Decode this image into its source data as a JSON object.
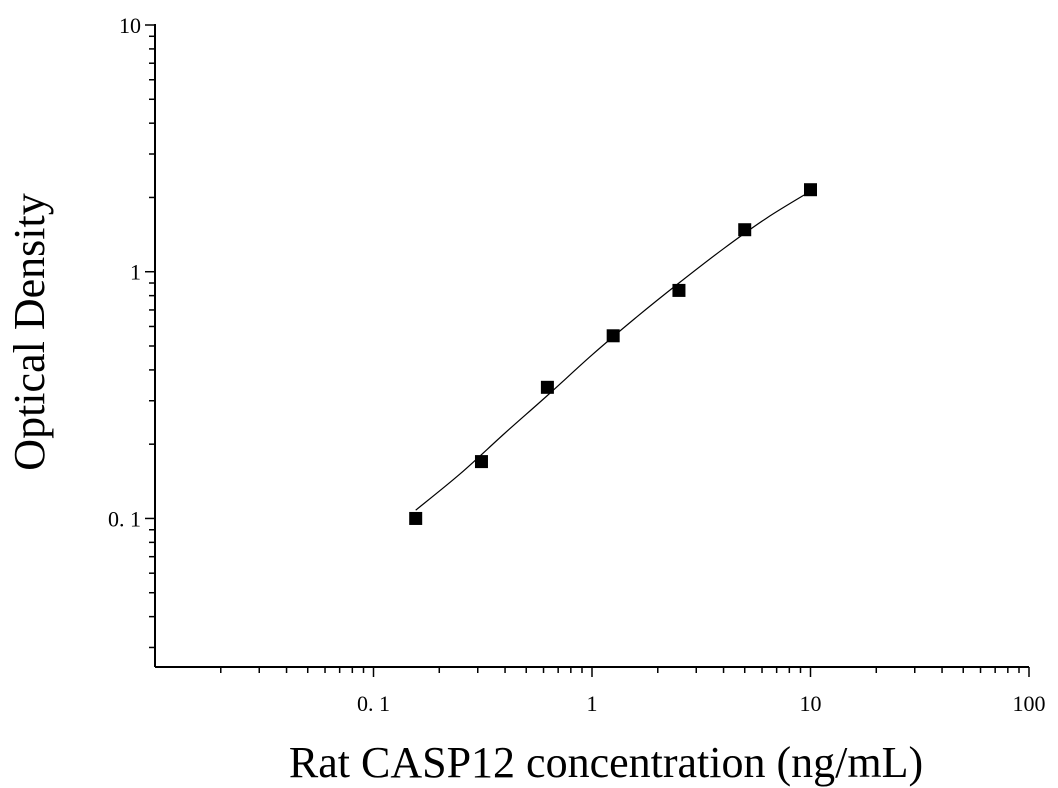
{
  "chart_data": {
    "type": "scatter",
    "xlabel": "Rat CASP12 concentration (ng/mL)",
    "ylabel": "Optical Density",
    "x_scale": "log",
    "y_scale": "log",
    "xlim": [
      0.01,
      100
    ],
    "ylim": [
      0.025,
      10
    ],
    "x_ticks": [
      {
        "value": 0.1,
        "label": "0. 1"
      },
      {
        "value": 1,
        "label": "1"
      },
      {
        "value": 10,
        "label": "10"
      },
      {
        "value": 100,
        "label": "100"
      }
    ],
    "y_ticks": [
      {
        "value": 0.1,
        "label": "0. 1"
      },
      {
        "value": 1,
        "label": "1"
      },
      {
        "value": 10,
        "label": "10"
      }
    ],
    "points": [
      {
        "x": 0.156,
        "y": 0.1
      },
      {
        "x": 0.312,
        "y": 0.17
      },
      {
        "x": 0.625,
        "y": 0.34
      },
      {
        "x": 1.25,
        "y": 0.55
      },
      {
        "x": 2.5,
        "y": 0.84
      },
      {
        "x": 5,
        "y": 1.48
      },
      {
        "x": 10,
        "y": 2.15
      }
    ],
    "fit_curve": [
      {
        "x": 0.156,
        "y": 0.108
      },
      {
        "x": 0.25,
        "y": 0.152
      },
      {
        "x": 0.4,
        "y": 0.222
      },
      {
        "x": 0.625,
        "y": 0.315
      },
      {
        "x": 1,
        "y": 0.46
      },
      {
        "x": 1.6,
        "y": 0.655
      },
      {
        "x": 2.5,
        "y": 0.9
      },
      {
        "x": 4,
        "y": 1.24
      },
      {
        "x": 6.3,
        "y": 1.65
      },
      {
        "x": 10,
        "y": 2.12
      }
    ],
    "marker": "square",
    "marker_color": "#000000",
    "line_color": "#000000",
    "grid": false,
    "legend": "none"
  }
}
